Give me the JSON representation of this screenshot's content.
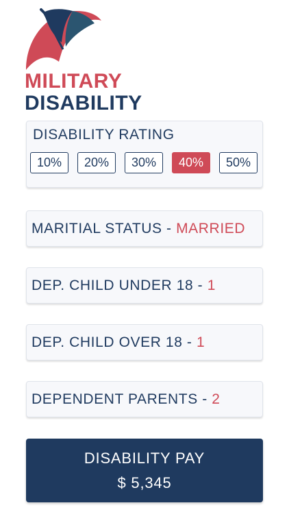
{
  "colors": {
    "navy": "#1f3a5f",
    "red": "#cf4a57",
    "card_bg": "#f7f8fb"
  },
  "logo": {
    "icon": "umbrella-icon"
  },
  "title": {
    "line1": "MILITARY",
    "line2": "DISABILITY"
  },
  "rating": {
    "label": "DISABILITY RATING",
    "options": [
      "10%",
      "20%",
      "30%",
      "40%",
      "50%"
    ],
    "selected": "40%"
  },
  "marital": {
    "label": "MARITIAL STATUS - ",
    "value": "MARRIED"
  },
  "child_under": {
    "label": "DEP. CHILD UNDER 18 - ",
    "value": "1"
  },
  "child_over": {
    "label": "DEP. CHILD OVER 18 - ",
    "value": "1"
  },
  "parents": {
    "label": "DEPENDENT PARENTS - ",
    "value": "2"
  },
  "pay": {
    "label": "DISABILITY PAY",
    "amount": "$ 5,345"
  }
}
